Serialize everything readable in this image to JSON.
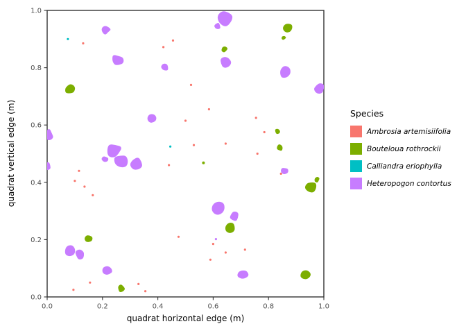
{
  "chart_data": {
    "type": "scatter",
    "title": "",
    "xlabel": "quadrat horizontal edge (m)",
    "ylabel": "quadrat vertical edge (m)",
    "xlim": [
      0.0,
      1.0
    ],
    "ylim": [
      0.0,
      1.0
    ],
    "xticks": [
      "0.0",
      "0.2",
      "0.4",
      "0.6",
      "0.8",
      "1.0"
    ],
    "yticks": [
      "0.0",
      "0.2",
      "0.4",
      "0.6",
      "0.8",
      "1.0"
    ],
    "grid": false,
    "legend_title": "Species",
    "legend_position": "right",
    "theme": {
      "background": "#FFFFFF",
      "panel_background": "#FFFFFF",
      "panel_border": "#333333",
      "tick_color": "#333333",
      "tick_label_color": "#4D4D4D",
      "text_color": "#000000"
    },
    "series": [
      {
        "name": "Ambrosia artemisiifolia",
        "color": "#F8766D",
        "marker": "dot",
        "points": [
          [
            0.13,
            0.885,
            0.004
          ],
          [
            0.42,
            0.872,
            0.004
          ],
          [
            0.455,
            0.895,
            0.004
          ],
          [
            0.52,
            0.74,
            0.004
          ],
          [
            0.585,
            0.655,
            0.004
          ],
          [
            0.5,
            0.615,
            0.004
          ],
          [
            0.53,
            0.53,
            0.004
          ],
          [
            0.645,
            0.535,
            0.004
          ],
          [
            0.755,
            0.625,
            0.004
          ],
          [
            0.785,
            0.575,
            0.004
          ],
          [
            0.76,
            0.5,
            0.004
          ],
          [
            0.845,
            0.43,
            0.004
          ],
          [
            0.115,
            0.44,
            0.004
          ],
          [
            0.1,
            0.405,
            0.004
          ],
          [
            0.135,
            0.385,
            0.004
          ],
          [
            0.165,
            0.355,
            0.004
          ],
          [
            0.44,
            0.46,
            0.004
          ],
          [
            0.475,
            0.21,
            0.004
          ],
          [
            0.6,
            0.185,
            0.004
          ],
          [
            0.645,
            0.155,
            0.004
          ],
          [
            0.715,
            0.165,
            0.004
          ],
          [
            0.59,
            0.13,
            0.004
          ],
          [
            0.155,
            0.05,
            0.004
          ],
          [
            0.33,
            0.045,
            0.004
          ],
          [
            0.355,
            0.02,
            0.004
          ],
          [
            0.095,
            0.025,
            0.004
          ]
        ]
      },
      {
        "name": "Bouteloua rothrockii",
        "color": "#7CAE00",
        "marker": "blob",
        "points": [
          [
            0.87,
            0.94,
            0.018
          ],
          [
            0.855,
            0.905,
            0.008
          ],
          [
            0.08,
            0.725,
            0.02
          ],
          [
            0.64,
            0.865,
            0.013
          ],
          [
            0.833,
            0.578,
            0.011
          ],
          [
            0.84,
            0.52,
            0.012
          ],
          [
            0.953,
            0.385,
            0.022
          ],
          [
            0.975,
            0.41,
            0.011
          ],
          [
            0.663,
            0.24,
            0.019
          ],
          [
            0.15,
            0.203,
            0.014
          ],
          [
            0.932,
            0.078,
            0.019
          ],
          [
            0.267,
            0.03,
            0.013
          ],
          [
            0.565,
            0.468,
            0.005
          ]
        ]
      },
      {
        "name": "Calliandra eriophylla",
        "color": "#00BFC4",
        "marker": "dot",
        "points": [
          [
            0.075,
            0.9,
            0.004
          ],
          [
            0.445,
            0.525,
            0.004
          ]
        ]
      },
      {
        "name": "Heteropogon contortus",
        "color": "#C77CFF",
        "marker": "blob",
        "points": [
          [
            0.645,
            0.975,
            0.03
          ],
          [
            0.615,
            0.945,
            0.012
          ],
          [
            0.213,
            0.932,
            0.016
          ],
          [
            0.256,
            0.825,
            0.024
          ],
          [
            0.425,
            0.8,
            0.015
          ],
          [
            0.645,
            0.82,
            0.02
          ],
          [
            0.857,
            0.785,
            0.022
          ],
          [
            0.985,
            0.73,
            0.02
          ],
          [
            0.003,
            0.565,
            0.022
          ],
          [
            0.0,
            0.455,
            0.015
          ],
          [
            0.382,
            0.622,
            0.018
          ],
          [
            0.24,
            0.51,
            0.03
          ],
          [
            0.27,
            0.475,
            0.028
          ],
          [
            0.325,
            0.463,
            0.024
          ],
          [
            0.21,
            0.48,
            0.013
          ],
          [
            0.62,
            0.31,
            0.023
          ],
          [
            0.675,
            0.28,
            0.02
          ],
          [
            0.858,
            0.44,
            0.014
          ],
          [
            0.082,
            0.16,
            0.021
          ],
          [
            0.12,
            0.147,
            0.02
          ],
          [
            0.218,
            0.09,
            0.018
          ],
          [
            0.707,
            0.078,
            0.02
          ],
          [
            0.61,
            0.202,
            0.004
          ]
        ]
      }
    ]
  }
}
